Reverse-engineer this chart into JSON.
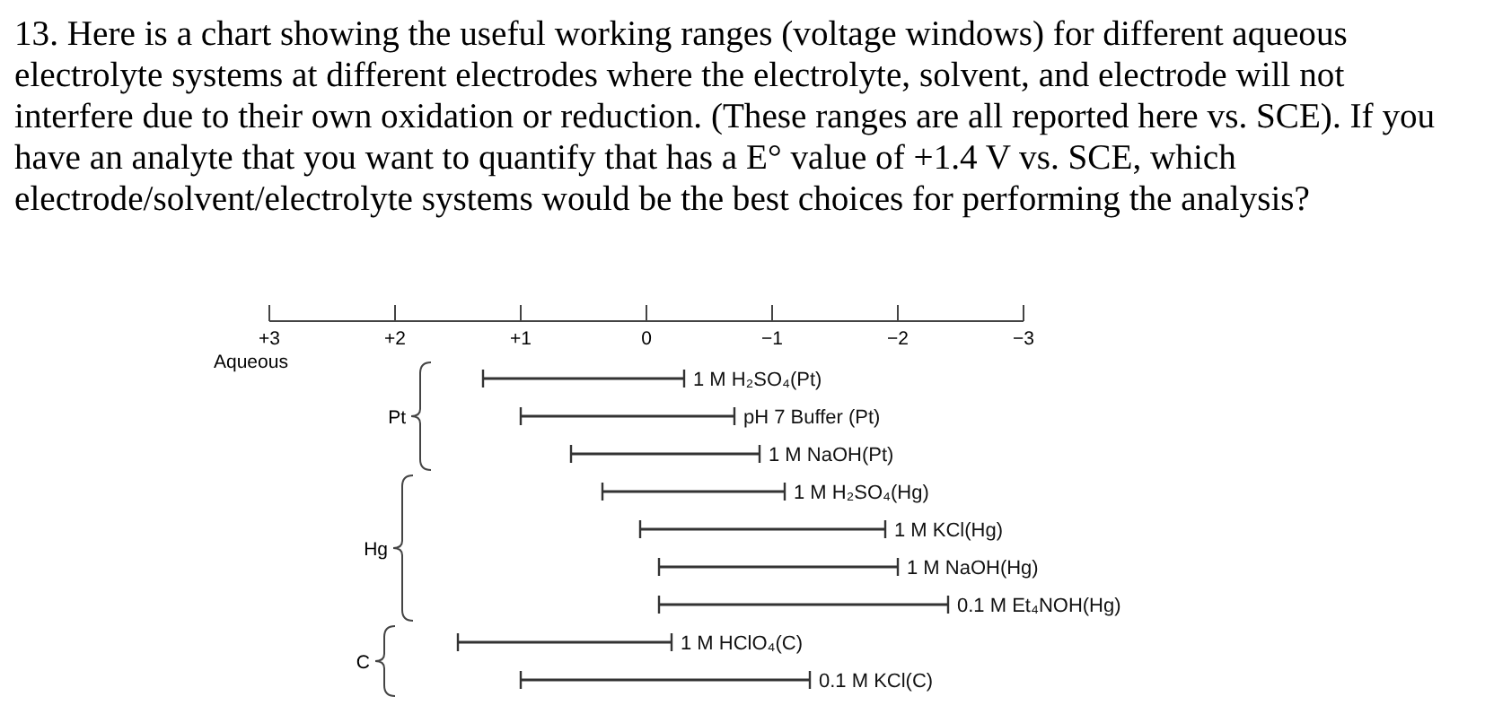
{
  "chart_data": {
    "type": "bar",
    "orientation": "horizontal",
    "title": "13. Here is a chart showing the useful working ranges (voltage windows) for different aqueous electrolyte systems at different electrodes where the electrolyte, solvent, and electrode will not interfere due to their own oxidation or reduction. (These ranges are all reported here vs. SCE). If you have an analyte that you want to quantify that has a E° value of +1.4 V vs. SCE, which electrode/solvent/electrolyte systems would be the best choices for performing the analysis?",
    "categories": [
      "1 M H₂SO₄(Pt)",
      "pH 7 Buffer (Pt)",
      "1 M NaOH(Pt)",
      "1 M H₂SO₄(Hg)",
      "1 M KCl(Hg)",
      "1 M NaOH(Hg)",
      "0.1 M Et₄NOH(Hg)",
      "1 M HClO₄(C)",
      "0.1 M KCl(C)"
    ],
    "base": [
      1.3,
      1.0,
      0.6,
      0.35,
      0.05,
      -0.1,
      -0.1,
      1.5,
      1.0
    ],
    "values": [
      -1.6,
      -1.7,
      -1.5,
      -1.45,
      -1.95,
      -1.9,
      -2.3,
      -1.7,
      -2.3
    ],
    "color": "#333333",
    "xlim": [
      3,
      -3
    ],
    "xticks": [
      {
        "value": 3,
        "label": "+3"
      },
      {
        "value": 2,
        "label": "+2"
      },
      {
        "value": 1,
        "label": "+1"
      },
      0,
      {
        "value": -1,
        "label": "−1"
      },
      {
        "value": -2,
        "label": "−2"
      },
      {
        "value": -3,
        "label": "−3"
      }
    ],
    "annotations": [
      "Aqueous",
      "Pt",
      "Hg",
      "C"
    ],
    "grid": false
  }
}
